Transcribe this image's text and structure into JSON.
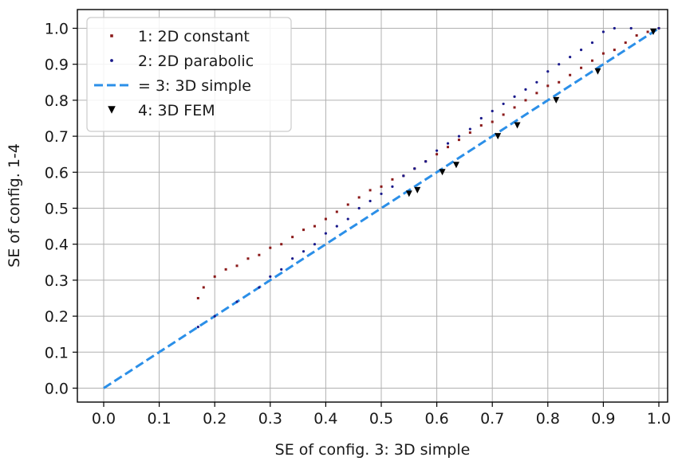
{
  "chart_data": {
    "type": "scatter",
    "title": "",
    "xlabel": "SE of config. 3: 3D simple",
    "ylabel": "SE of config. 1-4",
    "xlim": [
      -0.05,
      1.04
    ],
    "ylim": [
      -0.05,
      1.04
    ],
    "xticks": [
      "0.0",
      "0.1",
      "0.2",
      "0.3",
      "0.4",
      "0.5",
      "0.6",
      "0.7",
      "0.8",
      "0.9",
      "1.0"
    ],
    "yticks": [
      "0.0",
      "0.1",
      "0.2",
      "0.3",
      "0.4",
      "0.5",
      "0.6",
      "0.7",
      "0.8",
      "0.9",
      "1.0"
    ],
    "grid": true,
    "legend_position": "top-left",
    "series": [
      {
        "name": "1: 2D constant",
        "marker": "square",
        "color": "#8b1a1a",
        "points": [
          [
            0.17,
            0.25
          ],
          [
            0.18,
            0.28
          ],
          [
            0.2,
            0.31
          ],
          [
            0.22,
            0.33
          ],
          [
            0.24,
            0.34
          ],
          [
            0.26,
            0.36
          ],
          [
            0.28,
            0.37
          ],
          [
            0.3,
            0.39
          ],
          [
            0.32,
            0.4
          ],
          [
            0.34,
            0.42
          ],
          [
            0.36,
            0.44
          ],
          [
            0.38,
            0.45
          ],
          [
            0.4,
            0.47
          ],
          [
            0.42,
            0.49
          ],
          [
            0.44,
            0.51
          ],
          [
            0.46,
            0.53
          ],
          [
            0.48,
            0.55
          ],
          [
            0.5,
            0.56
          ],
          [
            0.52,
            0.58
          ],
          [
            0.54,
            0.59
          ],
          [
            0.56,
            0.61
          ],
          [
            0.58,
            0.63
          ],
          [
            0.6,
            0.65
          ],
          [
            0.62,
            0.67
          ],
          [
            0.64,
            0.69
          ],
          [
            0.66,
            0.71
          ],
          [
            0.68,
            0.73
          ],
          [
            0.7,
            0.74
          ],
          [
            0.72,
            0.76
          ],
          [
            0.74,
            0.78
          ],
          [
            0.76,
            0.8
          ],
          [
            0.78,
            0.82
          ],
          [
            0.8,
            0.84
          ],
          [
            0.82,
            0.85
          ],
          [
            0.84,
            0.87
          ],
          [
            0.86,
            0.89
          ],
          [
            0.88,
            0.91
          ],
          [
            0.9,
            0.93
          ],
          [
            0.92,
            0.94
          ],
          [
            0.94,
            0.96
          ],
          [
            0.96,
            0.98
          ],
          [
            0.98,
            0.99
          ],
          [
            1.0,
            1.0
          ]
        ]
      },
      {
        "name": "2: 2D parabolic",
        "marker": "circle",
        "color": "#1a1a8b",
        "points": [
          [
            0.17,
            0.17
          ],
          [
            0.2,
            0.2
          ],
          [
            0.24,
            0.24
          ],
          [
            0.28,
            0.28
          ],
          [
            0.3,
            0.31
          ],
          [
            0.32,
            0.33
          ],
          [
            0.34,
            0.36
          ],
          [
            0.36,
            0.38
          ],
          [
            0.38,
            0.4
          ],
          [
            0.4,
            0.43
          ],
          [
            0.42,
            0.45
          ],
          [
            0.44,
            0.47
          ],
          [
            0.46,
            0.5
          ],
          [
            0.48,
            0.52
          ],
          [
            0.5,
            0.54
          ],
          [
            0.52,
            0.56
          ],
          [
            0.54,
            0.59
          ],
          [
            0.56,
            0.61
          ],
          [
            0.58,
            0.63
          ],
          [
            0.6,
            0.66
          ],
          [
            0.62,
            0.68
          ],
          [
            0.64,
            0.7
          ],
          [
            0.66,
            0.72
          ],
          [
            0.68,
            0.75
          ],
          [
            0.7,
            0.77
          ],
          [
            0.72,
            0.79
          ],
          [
            0.74,
            0.81
          ],
          [
            0.76,
            0.83
          ],
          [
            0.78,
            0.85
          ],
          [
            0.8,
            0.88
          ],
          [
            0.82,
            0.9
          ],
          [
            0.84,
            0.92
          ],
          [
            0.86,
            0.94
          ],
          [
            0.88,
            0.96
          ],
          [
            0.9,
            0.99
          ],
          [
            0.92,
            1.0
          ],
          [
            0.95,
            1.0
          ],
          [
            1.0,
            1.0
          ]
        ]
      },
      {
        "name": "= 3: 3D simple",
        "marker": "dashed-line",
        "color": "#2b8fe8",
        "points": [
          [
            0.0,
            0.0
          ],
          [
            1.0,
            1.0
          ]
        ]
      },
      {
        "name": "4: 3D FEM",
        "marker": "triangle-down",
        "color": "#000000",
        "points": [
          [
            0.55,
            0.54
          ],
          [
            0.565,
            0.55
          ],
          [
            0.61,
            0.6
          ],
          [
            0.635,
            0.62
          ],
          [
            0.71,
            0.7
          ],
          [
            0.745,
            0.73
          ],
          [
            0.815,
            0.8
          ],
          [
            0.89,
            0.88
          ],
          [
            0.99,
            0.99
          ]
        ]
      }
    ]
  }
}
